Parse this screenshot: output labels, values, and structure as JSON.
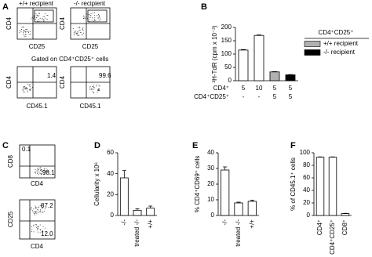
{
  "panels": {
    "letters": [
      "A",
      "B",
      "C",
      "D",
      "E",
      "F"
    ]
  },
  "flow": {
    "a_titles": [
      "+/+ recipient",
      "-/- recipient"
    ],
    "a_top_y": "CD4",
    "a_top_x": "CD25",
    "gate_note": "Gated on CD4⁺CD25⁺ cells",
    "a_bottom_y": "CD4",
    "a_bottom_x": "CD45.1",
    "a_bottom_values": [
      "1.4",
      "99.6"
    ],
    "c_top": {
      "y": "CD8",
      "x": "CD4",
      "upper": "0.1",
      "lower": "98.1"
    },
    "c_bottom": {
      "y": "CD25",
      "x": "CD4",
      "upper": "87.2",
      "lower": "12.0"
    }
  },
  "chart_data": [
    {
      "type": "bar",
      "ylabel": "³H-TdR (cpm x 10⁻³)",
      "categories": [
        "5",
        "10",
        "5",
        "5"
      ],
      "categories2": [
        "-",
        "-",
        "5",
        "5"
      ],
      "row_labels": [
        "CD4⁺",
        "CD4⁺CD25⁺"
      ],
      "values": [
        115,
        170,
        33,
        22
      ],
      "errors": [
        2,
        2,
        1,
        1
      ],
      "colors": [
        "#ffffff",
        "#ffffff",
        "#b0b0b0",
        "#000000"
      ],
      "ylim": [
        0,
        200
      ],
      "yticks": [
        0,
        50,
        100,
        150,
        200
      ],
      "legend": {
        "title": "CD4⁺CD25⁺",
        "entries": [
          {
            "name": "+/+ recipient",
            "color": "#b0b0b0"
          },
          {
            "name": "-/- recipient",
            "color": "#000000"
          }
        ]
      }
    },
    {
      "type": "bar",
      "ylabel": "Cellularity x 10⁶",
      "categories": [
        "-/-",
        "treated -/-",
        "+/+"
      ],
      "values": [
        36,
        5,
        7
      ],
      "errors": [
        7,
        1.5,
        2
      ],
      "color": "#ffffff",
      "ylim": [
        0,
        60
      ],
      "yticks": [
        0,
        20,
        40,
        60
      ]
    },
    {
      "type": "bar",
      "ylabel": "% CD4⁺CD69⁺ cells",
      "categories": [
        "-/-",
        "treated -/-",
        "+/+"
      ],
      "values": [
        29,
        8,
        9
      ],
      "errors": [
        2,
        0.5,
        0.8
      ],
      "color": "#ffffff",
      "ylim": [
        0,
        40
      ],
      "yticks": [
        0,
        10,
        20,
        30,
        40
      ]
    },
    {
      "type": "bar",
      "ylabel": "% of CD45.1⁺ cells",
      "categories": [
        "CD4⁺",
        "CD4⁺CD25⁺",
        "CD8⁺"
      ],
      "values": [
        93,
        93,
        3
      ],
      "errors": [
        0.5,
        0.5,
        0.5
      ],
      "color": "#ffffff",
      "ylim": [
        0,
        100
      ],
      "yticks": [
        0,
        20,
        40,
        60,
        80,
        100
      ]
    }
  ]
}
